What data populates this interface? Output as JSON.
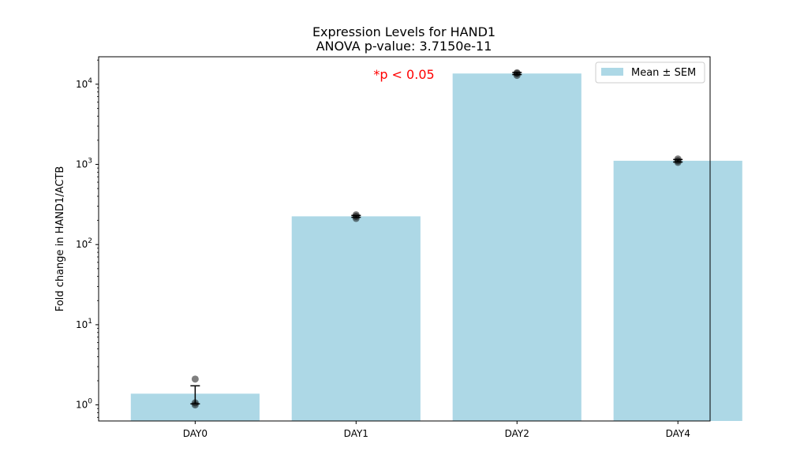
{
  "chart_data": {
    "type": "bar",
    "title": "Expression Levels for HAND1",
    "subtitle": "ANOVA p-value: 3.7150e-11",
    "xlabel": "",
    "ylabel": "Fold change in HAND1/ACTB",
    "yscale": "log",
    "ylim": [
      0.63,
      22000
    ],
    "categories": [
      "DAY0",
      "DAY1",
      "DAY2",
      "DAY4"
    ],
    "series": [
      {
        "name": "Mean ± SEM",
        "values": [
          1.38,
          225,
          13600,
          1110
        ],
        "sem": [
          0.35,
          6,
          400,
          40
        ],
        "color": "#add8e6"
      }
    ],
    "replicates": [
      [
        1.0,
        1.06,
        2.1
      ],
      [
        212,
        225,
        235
      ],
      [
        12900,
        13600,
        13900
      ],
      [
        1060,
        1110,
        1170
      ]
    ],
    "ytick_labels": [
      {
        "base": "10",
        "exp": "0",
        "value": 1
      },
      {
        "base": "10",
        "exp": "1",
        "value": 10
      },
      {
        "base": "10",
        "exp": "2",
        "value": 100
      },
      {
        "base": "10",
        "exp": "3",
        "value": 1000
      },
      {
        "base": "10",
        "exp": "4",
        "value": 10000
      }
    ],
    "annotation": {
      "text": "*p < 0.05",
      "color": "#ff0000"
    },
    "legend": {
      "entry": "Mean ± SEM",
      "placement": "top-right"
    },
    "grid": false
  }
}
